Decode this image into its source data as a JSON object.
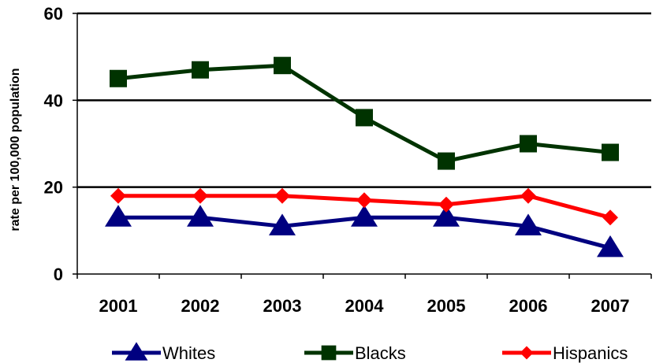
{
  "chart_data": {
    "type": "line",
    "categories": [
      "2001",
      "2002",
      "2003",
      "2004",
      "2005",
      "2006",
      "2007"
    ],
    "ylabel": "rate per 100,000 population",
    "xlabel": "",
    "title": "",
    "ylim": [
      0,
      60
    ],
    "yticks": [
      0,
      20,
      40,
      60
    ],
    "grid": true,
    "legend_position": "bottom",
    "series": [
      {
        "name": "Whites",
        "color": "#000080",
        "marker": "triangle",
        "values": [
          13,
          13,
          11,
          13,
          13,
          11,
          6
        ]
      },
      {
        "name": "Blacks",
        "color": "#003300",
        "marker": "square",
        "values": [
          45,
          47,
          48,
          36,
          26,
          30,
          28
        ]
      },
      {
        "name": "Hispanics",
        "color": "#ff0000",
        "marker": "diamond",
        "values": [
          18,
          18,
          18,
          17,
          16,
          18,
          13
        ]
      }
    ]
  }
}
